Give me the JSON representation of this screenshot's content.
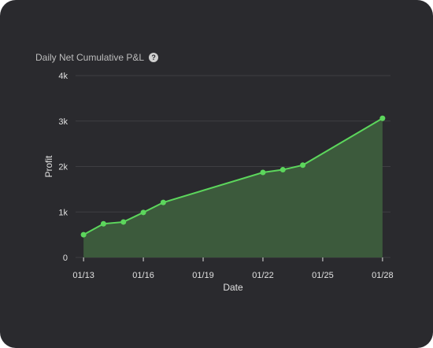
{
  "chart_data": {
    "type": "area",
    "title": "Daily Net Cumulative P&L",
    "xlabel": "Date",
    "ylabel": "Profit",
    "ylim": [
      0,
      4000
    ],
    "yticks": [
      0,
      1000,
      2000,
      3000,
      4000
    ],
    "ytick_labels": [
      "0",
      "1k",
      "2k",
      "3k",
      "4k"
    ],
    "xticks": [
      "01/13",
      "01/16",
      "01/19",
      "01/22",
      "01/25",
      "01/28"
    ],
    "xlim": [
      "01/13",
      "01/28"
    ],
    "grid": true,
    "series": [
      {
        "x": [
          "01/13",
          "01/14",
          "01/15",
          "01/16",
          "01/17",
          "01/22",
          "01/23",
          "01/24",
          "01/28"
        ],
        "values": [
          500,
          740,
          780,
          990,
          1210,
          1870,
          1930,
          2030,
          3060
        ]
      }
    ]
  },
  "colors": {
    "line": "#5cd65c",
    "fill": "#3c5a3c",
    "grid": "#3e3e42",
    "text": "#e0e0e0"
  },
  "icons": {
    "help": "help-icon"
  },
  "help_glyph": "?"
}
